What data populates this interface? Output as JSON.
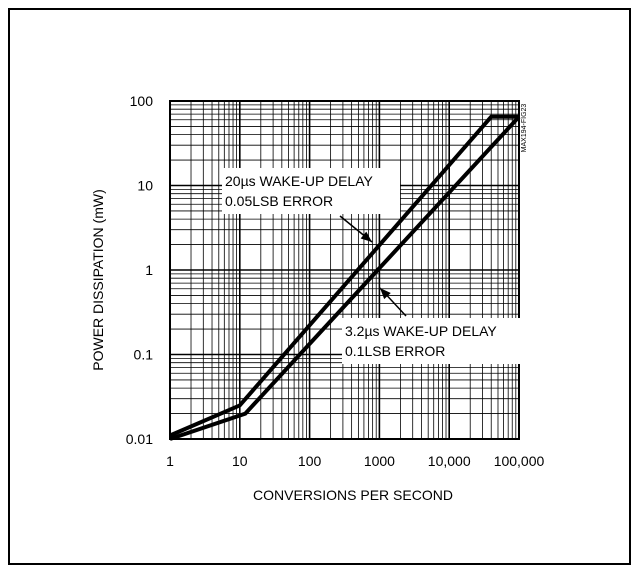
{
  "chart_data": {
    "type": "line",
    "xlabel": "CONVERSIONS PER SECOND",
    "ylabel": "POWER DISSIPATION (mW)",
    "xscale": "log",
    "yscale": "log",
    "xlim": [
      1,
      100000
    ],
    "ylim": [
      0.01,
      100
    ],
    "grid": true,
    "x_tick_labels": [
      "1",
      "10",
      "100",
      "1000",
      "10,000",
      "100,000"
    ],
    "y_tick_labels": [
      "0.01",
      "0.1",
      "1",
      "10",
      "100"
    ],
    "watermark": "MAX194-FIG23",
    "series": [
      {
        "name": "20µs WAKE-UP DELAY 0.05LSB ERROR",
        "points": [
          [
            1,
            0.011
          ],
          [
            10,
            0.025
          ],
          [
            40000,
            65
          ],
          [
            100000,
            65
          ]
        ]
      },
      {
        "name": "3.2µs WAKE-UP DELAY 0.1LSB ERROR",
        "points": [
          [
            1,
            0.01
          ],
          [
            12,
            0.02
          ],
          [
            100000,
            65
          ]
        ]
      }
    ],
    "annotations": [
      {
        "lines": [
          "20µs WAKE-UP DELAY",
          "0.05LSB ERROR"
        ],
        "series": 0
      },
      {
        "lines": [
          "3.2µs WAKE-UP DELAY",
          "0.1LSB ERROR"
        ],
        "series": 1
      }
    ]
  }
}
